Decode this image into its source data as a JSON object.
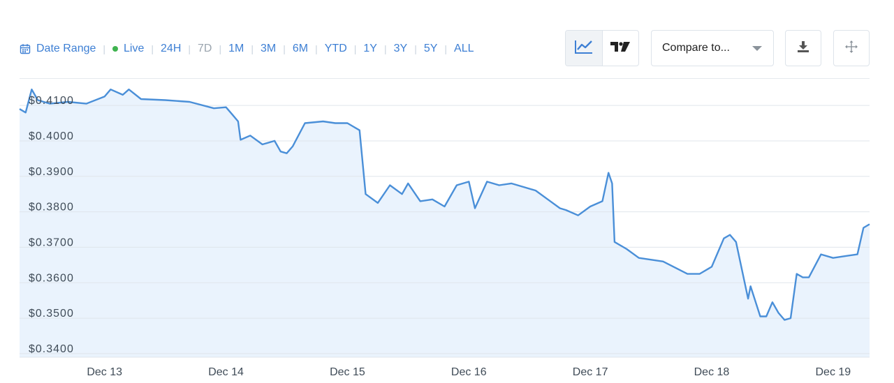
{
  "toolbar": {
    "date_range_label": "Date Range",
    "live_label": "Live",
    "ranges": [
      "24H",
      "7D",
      "1M",
      "3M",
      "6M",
      "YTD",
      "1Y",
      "3Y",
      "5Y",
      "ALL"
    ],
    "active_range": "7D"
  },
  "compare": {
    "label": "Compare to..."
  },
  "icons": {
    "calendar": "calendar-icon",
    "line_chart": "line-chart-icon",
    "tradingview": "tradingview-icon",
    "download": "download-icon",
    "fullscreen": "move-icon",
    "dropdown": "chevron-down-icon"
  },
  "colors": {
    "accent": "#3d7fd4",
    "line": "#4a8fd8",
    "area": "#eaf3fd",
    "live": "#3fb34f",
    "muted": "#9aa4ae"
  },
  "chart_data": {
    "type": "area",
    "title": "",
    "xlabel": "",
    "ylabel": "",
    "ylim": [
      0.339,
      0.4175
    ],
    "grid": true,
    "y_ticks": [
      "$0.4100",
      "$0.4000",
      "$0.3900",
      "$0.3800",
      "$0.3700",
      "$0.3600",
      "$0.3500",
      "$0.3400"
    ],
    "y_tick_values": [
      0.41,
      0.4,
      0.39,
      0.38,
      0.37,
      0.36,
      0.35,
      0.34
    ],
    "x_ticks": [
      "Dec 13",
      "Dec 14",
      "Dec 15",
      "Dec 16",
      "Dec 17",
      "Dec 18",
      "Dec 19"
    ],
    "x_tick_values": [
      13,
      14,
      15,
      16,
      17,
      18,
      19
    ],
    "xlim": [
      12.3,
      19.3
    ],
    "series": [
      {
        "x": [
          12.3,
          12.35,
          12.4,
          12.45,
          12.55,
          12.7,
          12.85,
          13.0,
          13.05,
          13.15,
          13.2,
          13.3,
          13.5,
          13.7,
          13.9,
          14.0,
          14.05,
          14.1,
          14.12,
          14.2,
          14.3,
          14.4,
          14.45,
          14.5,
          14.55,
          14.65,
          14.8,
          14.9,
          15.0,
          15.05,
          15.1,
          15.15,
          15.25,
          15.35,
          15.45,
          15.5,
          15.6,
          15.7,
          15.8,
          15.9,
          16.0,
          16.05,
          16.15,
          16.25,
          16.35,
          16.45,
          16.55,
          16.65,
          16.75,
          16.8,
          16.9,
          17.0,
          17.1,
          17.15,
          17.18,
          17.2,
          17.3,
          17.4,
          17.6,
          17.8,
          17.9,
          18.0,
          18.1,
          18.15,
          18.2,
          18.3,
          18.32,
          18.4,
          18.45,
          18.5,
          18.55,
          18.6,
          18.65,
          18.7,
          18.75,
          18.8,
          18.9,
          19.0,
          19.1,
          19.2,
          19.25,
          19.3
        ],
        "y": [
          0.409,
          0.408,
          0.4145,
          0.4115,
          0.4105,
          0.411,
          0.4105,
          0.4125,
          0.4145,
          0.413,
          0.4145,
          0.4118,
          0.4115,
          0.411,
          0.4092,
          0.4095,
          0.4075,
          0.4055,
          0.4003,
          0.4015,
          0.399,
          0.4,
          0.397,
          0.3965,
          0.3985,
          0.405,
          0.4055,
          0.405,
          0.405,
          0.404,
          0.403,
          0.385,
          0.3825,
          0.3875,
          0.385,
          0.388,
          0.383,
          0.3835,
          0.3815,
          0.3875,
          0.3885,
          0.381,
          0.3885,
          0.3875,
          0.388,
          0.387,
          0.386,
          0.3835,
          0.381,
          0.3805,
          0.379,
          0.3815,
          0.383,
          0.391,
          0.388,
          0.3715,
          0.3695,
          0.367,
          0.366,
          0.3625,
          0.3625,
          0.3645,
          0.3725,
          0.3735,
          0.3715,
          0.3555,
          0.359,
          0.3505,
          0.3505,
          0.3545,
          0.3515,
          0.3495,
          0.35,
          0.3625,
          0.3615,
          0.3615,
          0.368,
          0.367,
          0.3675,
          0.368,
          0.3755,
          0.3765
        ]
      }
    ]
  }
}
